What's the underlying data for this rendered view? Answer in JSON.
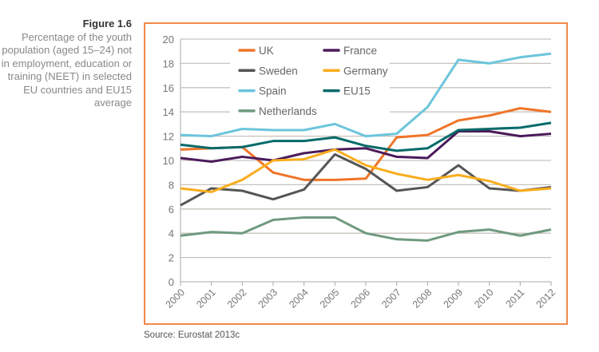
{
  "caption": {
    "figure": "Figure 1.6",
    "text": "Percentage of the youth population (aged 15–24) not in employment, education or training (NEET) in selected EU countries and EU15 average"
  },
  "source": "Source: Eurostat 2013c",
  "chart_data": {
    "type": "line",
    "title": "",
    "xlabel": "",
    "ylabel": "",
    "ylim": [
      0,
      20
    ],
    "yticks": [
      0,
      2,
      4,
      6,
      8,
      10,
      12,
      14,
      16,
      18,
      20
    ],
    "x": [
      "2000",
      "2001",
      "2002",
      "2003",
      "2004",
      "2005",
      "2006",
      "2007",
      "2008",
      "2009",
      "2010",
      "2011",
      "2012"
    ],
    "grid": true,
    "legend": "top-left",
    "series": [
      {
        "name": "UK",
        "color": "#f07428",
        "values": [
          10.9,
          11.0,
          11.1,
          9.0,
          8.4,
          8.4,
          8.5,
          11.9,
          12.1,
          13.3,
          13.7,
          14.3,
          14.0
        ]
      },
      {
        "name": "France",
        "color": "#4b1a5a",
        "values": [
          10.2,
          9.9,
          10.3,
          10.0,
          10.6,
          10.9,
          11.0,
          10.3,
          10.2,
          12.4,
          12.4,
          12.0,
          12.2
        ]
      },
      {
        "name": "Sweden",
        "color": "#555555",
        "values": [
          6.3,
          7.7,
          7.5,
          6.8,
          7.6,
          10.5,
          9.3,
          7.5,
          7.8,
          9.6,
          7.7,
          7.5,
          7.8
        ]
      },
      {
        "name": "Germany",
        "color": "#f9ad1d",
        "values": [
          7.7,
          7.4,
          8.4,
          10.0,
          10.1,
          10.9,
          9.6,
          8.9,
          8.4,
          8.8,
          8.3,
          7.5,
          7.7
        ]
      },
      {
        "name": "Spain",
        "color": "#6cc5dc",
        "values": [
          12.1,
          12.0,
          12.6,
          12.5,
          12.5,
          13.0,
          12.0,
          12.2,
          14.4,
          18.3,
          18.0,
          18.5,
          18.8
        ]
      },
      {
        "name": "EU15",
        "color": "#066a6a",
        "values": [
          11.3,
          11.0,
          11.1,
          11.6,
          11.6,
          11.9,
          11.2,
          10.8,
          11.0,
          12.5,
          12.6,
          12.7,
          13.1
        ]
      },
      {
        "name": "Netherlands",
        "color": "#6f9a7f",
        "values": [
          3.8,
          4.1,
          4.0,
          5.1,
          5.3,
          5.3,
          4.0,
          3.5,
          3.4,
          4.1,
          4.3,
          3.8,
          4.3
        ]
      }
    ]
  }
}
